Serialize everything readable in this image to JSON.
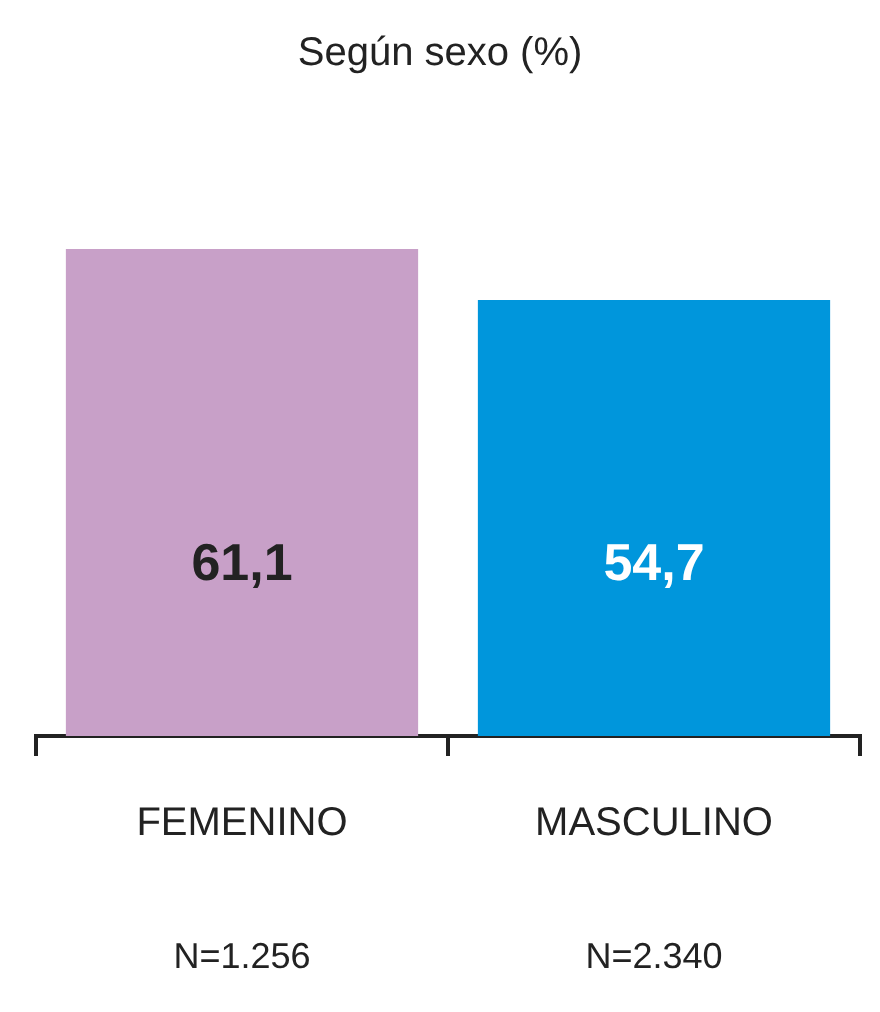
{
  "chart_data": {
    "type": "bar",
    "title": "Según sexo (%)",
    "categories": [
      "FEMENINO",
      "MASCULINO"
    ],
    "values": [
      61.1,
      54.7
    ],
    "value_labels": [
      "61,1",
      "54,7"
    ],
    "colors": [
      "#c8a0c8",
      "#0096dc"
    ],
    "relative": false,
    "grid": false,
    "legend": false,
    "annotations": [
      "N=1.256",
      "N=2.340"
    ]
  }
}
